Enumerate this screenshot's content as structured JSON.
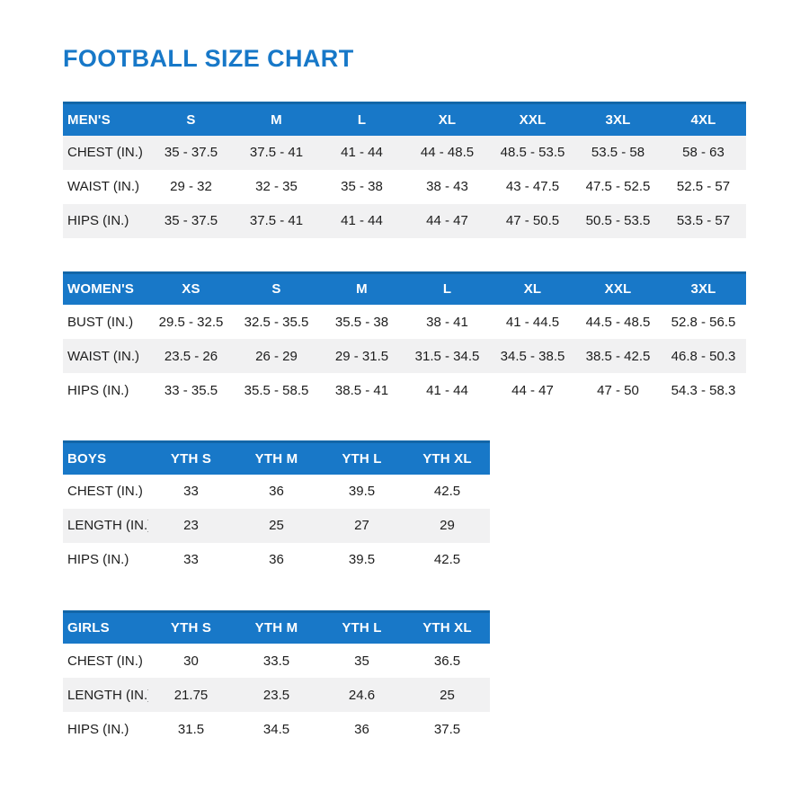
{
  "title": "FOOTBALL SIZE CHART",
  "colors": {
    "accent_blue": "#1778C8",
    "header_blue": "#1878C8",
    "header_top_border": "#1266A8",
    "stripe_gray": "#F1F1F2",
    "text_dark": "#1D1D1D"
  },
  "tables": [
    {
      "name": "mens",
      "header": {
        "label": "MEN'S",
        "sizes": [
          "S",
          "M",
          "L",
          "XL",
          "XXL",
          "3XL",
          "4XL"
        ]
      },
      "rows": [
        {
          "label": "CHEST (IN.)",
          "shaded": true,
          "values": [
            "35 - 37.5",
            "37.5 - 41",
            "41 - 44",
            "44 - 48.5",
            "48.5 - 53.5",
            "53.5 - 58",
            "58 - 63"
          ]
        },
        {
          "label": "WAIST (IN.)",
          "shaded": false,
          "values": [
            "29 - 32",
            "32 - 35",
            "35 - 38",
            "38 - 43",
            "43 - 47.5",
            "47.5 - 52.5",
            "52.5 - 57"
          ]
        },
        {
          "label": "HIPS (IN.)",
          "shaded": true,
          "values": [
            "35 - 37.5",
            "37.5 - 41",
            "41 - 44",
            "44 - 47",
            "47 - 50.5",
            "50.5 - 53.5",
            "53.5 - 57"
          ]
        }
      ]
    },
    {
      "name": "womens",
      "header": {
        "label": "WOMEN'S",
        "sizes": [
          "XS",
          "S",
          "M",
          "L",
          "XL",
          "XXL",
          "3XL"
        ]
      },
      "rows": [
        {
          "label": "BUST (IN.)",
          "shaded": false,
          "values": [
            "29.5 - 32.5",
            "32.5 - 35.5",
            "35.5 - 38",
            "38 - 41",
            "41 - 44.5",
            "44.5 - 48.5",
            "52.8 - 56.5"
          ]
        },
        {
          "label": "WAIST (IN.)",
          "shaded": true,
          "values": [
            "23.5 - 26",
            "26 - 29",
            "29 - 31.5",
            "31.5 - 34.5",
            "34.5 - 38.5",
            "38.5 - 42.5",
            "46.8 - 50.3"
          ]
        },
        {
          "label": "HIPS (IN.)",
          "shaded": false,
          "values": [
            "33 - 35.5",
            "35.5 - 58.5",
            "38.5 - 41",
            "41 - 44",
            "44 - 47",
            "47 - 50",
            "54.3 - 58.3"
          ]
        }
      ]
    },
    {
      "name": "boys",
      "header": {
        "label": "BOYS",
        "sizes": [
          "YTH S",
          "YTH M",
          "YTH L",
          "YTH XL"
        ]
      },
      "rows": [
        {
          "label": "CHEST (IN.)",
          "shaded": false,
          "values": [
            "33",
            "36",
            "39.5",
            "42.5"
          ]
        },
        {
          "label": "LENGTH (IN.)",
          "shaded": true,
          "values": [
            "23",
            "25",
            "27",
            "29"
          ]
        },
        {
          "label": "HIPS (IN.)",
          "shaded": false,
          "values": [
            "33",
            "36",
            "39.5",
            "42.5"
          ]
        }
      ]
    },
    {
      "name": "girls",
      "header": {
        "label": "GIRLS",
        "sizes": [
          "YTH S",
          "YTH M",
          "YTH L",
          "YTH XL"
        ]
      },
      "rows": [
        {
          "label": "CHEST (IN.)",
          "shaded": false,
          "values": [
            "30",
            "33.5",
            "35",
            "36.5"
          ]
        },
        {
          "label": "LENGTH (IN.)",
          "shaded": true,
          "values": [
            "21.75",
            "23.5",
            "24.6",
            "25"
          ]
        },
        {
          "label": "HIPS (IN.)",
          "shaded": false,
          "values": [
            "31.5",
            "34.5",
            "36",
            "37.5"
          ]
        }
      ]
    }
  ]
}
